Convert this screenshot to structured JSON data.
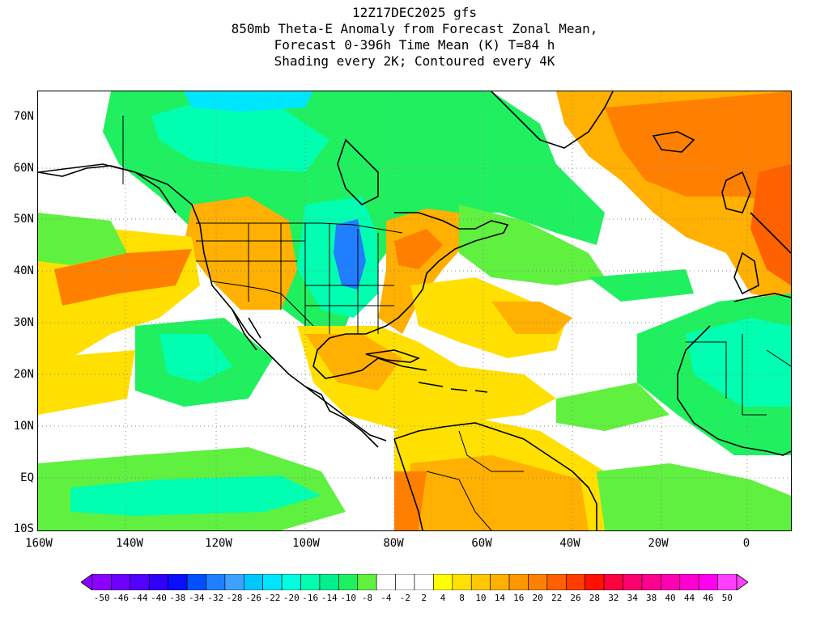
{
  "title": {
    "line1": "12Z17DEC2025 gfs",
    "line2": "850mb Theta-E Anomaly from Forecast Zonal Mean,",
    "line3": "Forecast 0-396h Time Mean (K) T=84 h",
    "line4": "Shading every 2K; Contoured every 4K"
  },
  "axes": {
    "lat_labels": [
      "70N",
      "60N",
      "50N",
      "40N",
      "30N",
      "20N",
      "10N",
      "EQ",
      "10S"
    ],
    "lon_labels": [
      "160W",
      "140W",
      "120W",
      "100W",
      "80W",
      "60W",
      "40W",
      "20W",
      "0"
    ]
  },
  "colorbar": {
    "labels": [
      "-50",
      "-46",
      "-44",
      "-40",
      "-38",
      "-34",
      "-32",
      "-28",
      "-26",
      "-22",
      "-20",
      "-16",
      "-14",
      "-10",
      "-8",
      "-4",
      "-2",
      "2",
      "4",
      "8",
      "10",
      "14",
      "16",
      "20",
      "22",
      "26",
      "28",
      "32",
      "34",
      "38",
      "40",
      "44",
      "46",
      "50"
    ],
    "colors": [
      "#8c00ff",
      "#6e00ff",
      "#5200ff",
      "#3000ff",
      "#0a10ff",
      "#0050ff",
      "#1f7fff",
      "#3fa0ff",
      "#00c8ff",
      "#00e6ff",
      "#00ffe0",
      "#00ffb0",
      "#00f090",
      "#20f060",
      "#60f040",
      "#ffffff",
      "#ffffff",
      "#ffffff",
      "#ffff00",
      "#ffe000",
      "#ffc800",
      "#ffb000",
      "#ff9800",
      "#ff8000",
      "#ff6000",
      "#ff3c00",
      "#ff1000",
      "#ff0040",
      "#ff0070",
      "#ff0090",
      "#ff00b0",
      "#ff00d0",
      "#ff00f0",
      "#ff40ff"
    ]
  },
  "colors": {
    "cold_strong": "#00e6ff",
    "cold": "#00ffb0",
    "cool": "#20f060",
    "cool_light": "#60f040",
    "warm_light": "#ffe000",
    "warm": "#ffb000",
    "warm_strong": "#ff8000",
    "hot": "#ff6000",
    "blue": "#1f7fff"
  }
}
